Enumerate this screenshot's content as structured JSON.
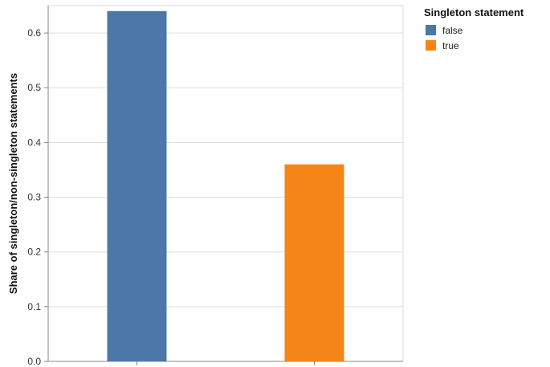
{
  "chart_data": {
    "type": "bar",
    "categories": [
      "false",
      "true"
    ],
    "values": [
      0.64,
      0.36
    ],
    "colors": [
      "#4c78a8",
      "#f58518"
    ],
    "ylabel": "Share of singleton/non-singleton statements",
    "xlabel": "",
    "ylim": [
      0,
      0.65
    ],
    "yticks": [
      "0.0",
      "0.1",
      "0.2",
      "0.3",
      "0.4",
      "0.5",
      "0.6"
    ],
    "grid": true,
    "legend": {
      "title": "Singleton statement",
      "position": "top-right",
      "entries": [
        "false",
        "true"
      ]
    }
  }
}
